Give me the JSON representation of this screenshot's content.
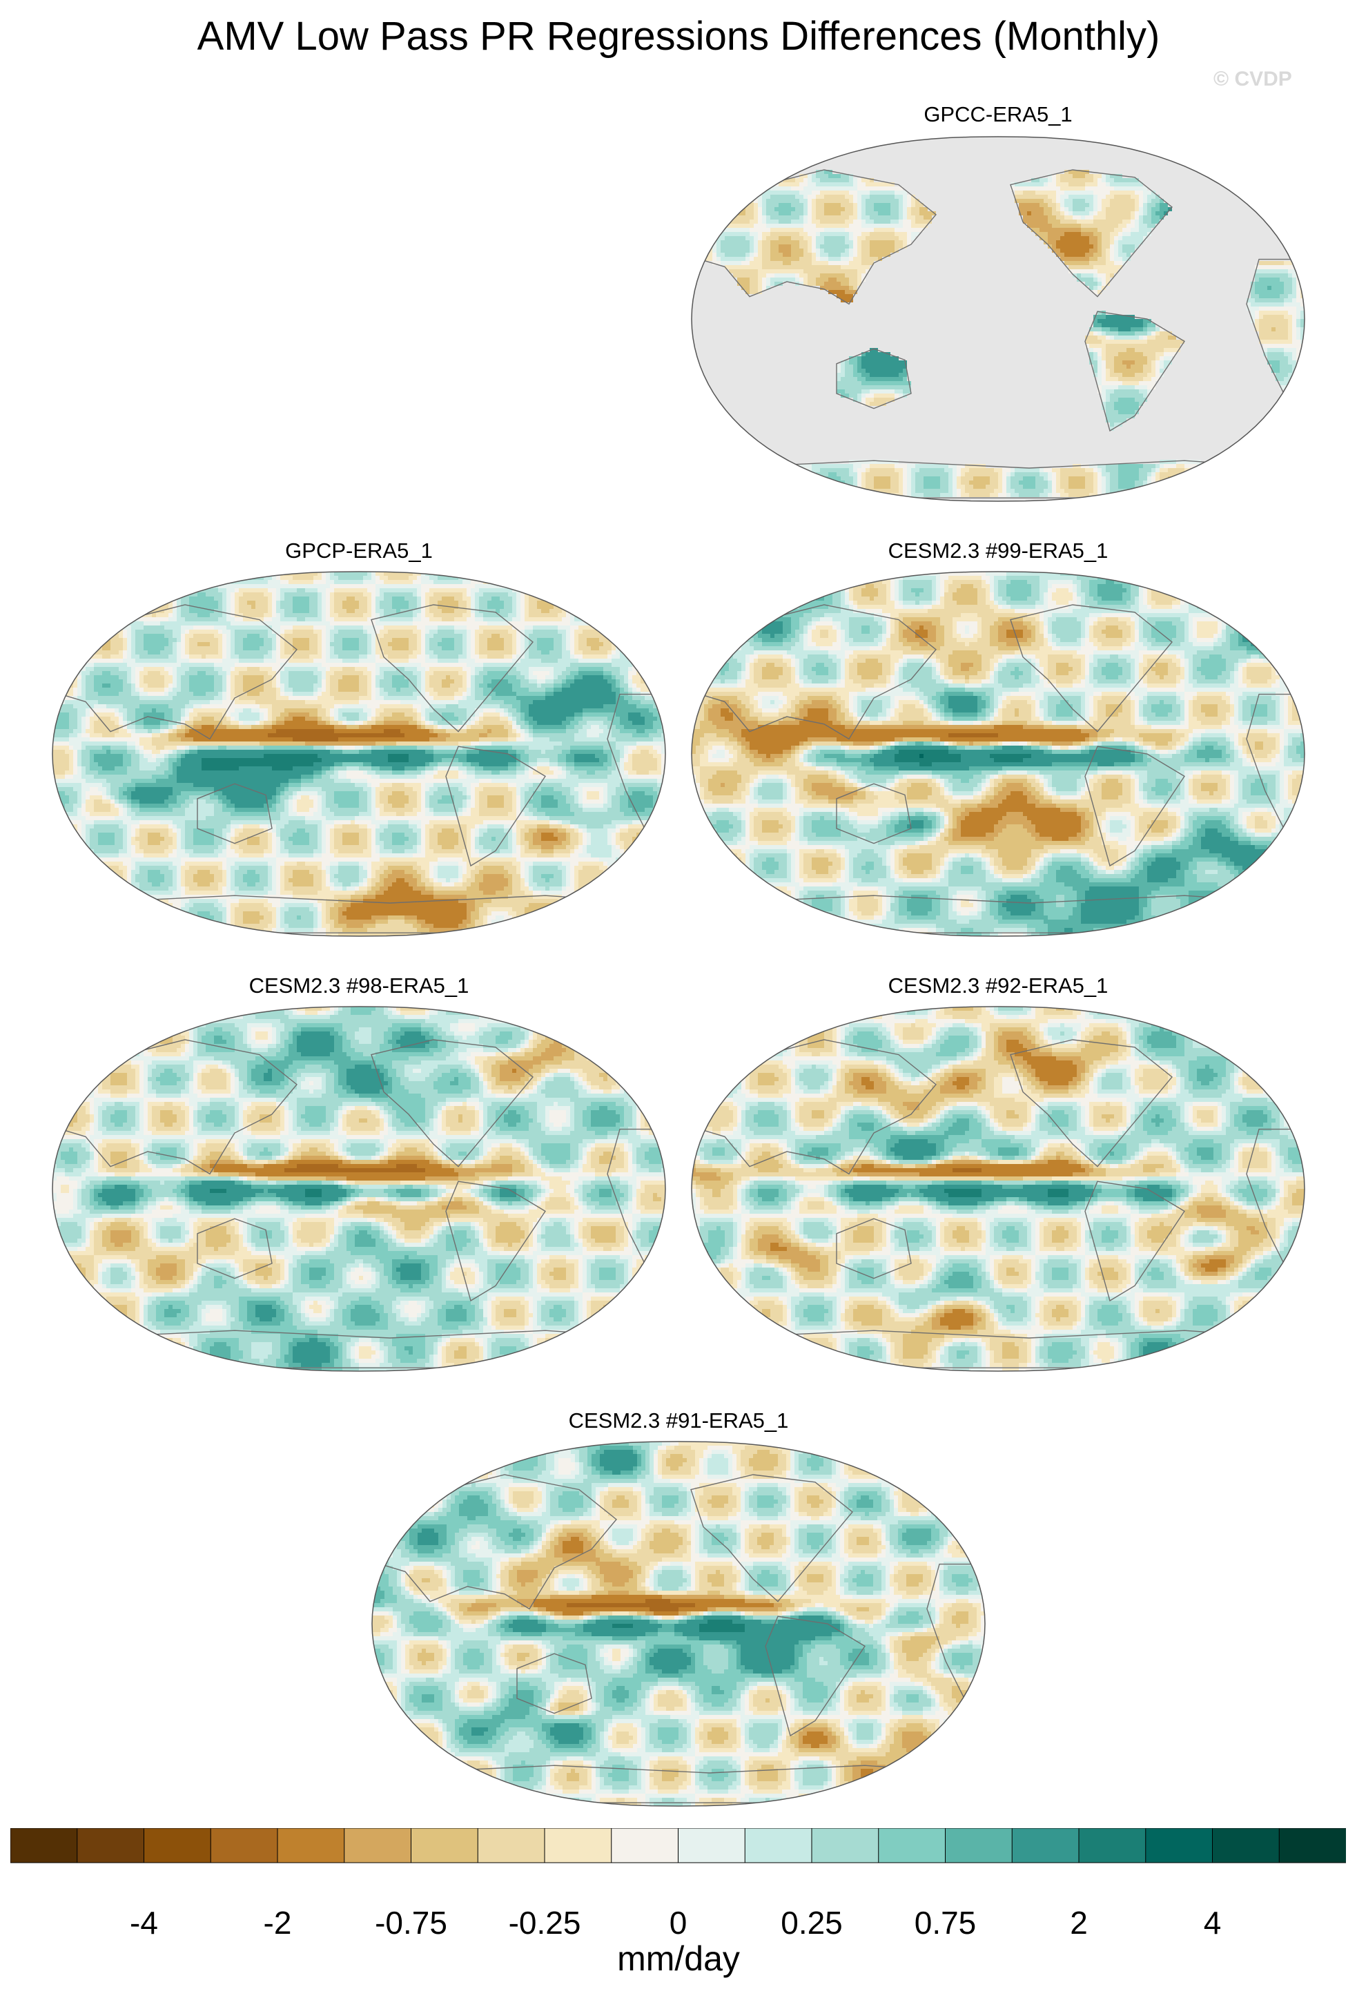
{
  "title": "AMV Low Pass PR Regressions Differences (Monthly)",
  "watermark": "© CVDP",
  "panels": [
    {
      "label": "GPCC-ERA5_1",
      "kind": "land-only",
      "seed": 11
    },
    {
      "label": "GPCP-ERA5_1",
      "kind": "full",
      "seed": 23
    },
    {
      "label": "CESM2.3 #99-ERA5_1",
      "kind": "full",
      "seed": 37
    },
    {
      "label": "CESM2.3 #98-ERA5_1",
      "kind": "full",
      "seed": 41
    },
    {
      "label": "CESM2.3 #92-ERA5_1",
      "kind": "full",
      "seed": 53
    },
    {
      "label": "CESM2.3 #91-ERA5_1",
      "kind": "full",
      "seed": 67
    }
  ],
  "colorbar": {
    "units": "mm/day",
    "tick_labels": [
      "-4",
      "-2",
      "-0.75",
      "-0.25",
      "0",
      "0.25",
      "0.75",
      "2",
      "4"
    ],
    "colors": [
      "#543005",
      "#6f3f0c",
      "#8c510a",
      "#a9691f",
      "#bf812d",
      "#d4a75e",
      "#dfc27d",
      "#ecd9a8",
      "#f6e8c3",
      "#f5f2ec",
      "#e6f2ef",
      "#c7eae5",
      "#a6dbd2",
      "#80cdc1",
      "#5ab4a8",
      "#35978f",
      "#1b7f75",
      "#01665e",
      "#014f44",
      "#003c30"
    ]
  },
  "land_color": "#e6e6e6"
}
